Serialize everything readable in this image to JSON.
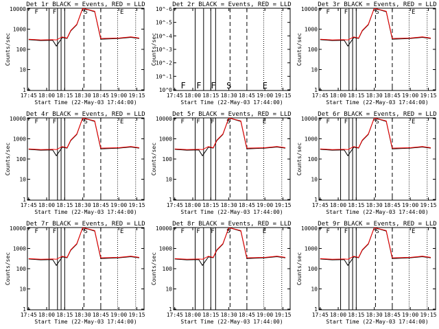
{
  "colors": {
    "background": "#ffffff",
    "axes": "#000000",
    "events": "#000000",
    "lld": "#ff0000"
  },
  "chart_data": [
    {
      "type": "line",
      "title": "Det 1r BLACK = Events, RED = LLD",
      "xlabel": "Start Time (22-May-03 17:44:00)",
      "ylabel": "Counts/sec",
      "yscale": "log",
      "x_ticks": [
        "17:45",
        "18:00",
        "18:15",
        "18:30",
        "18:45",
        "19:00",
        "19:15"
      ],
      "y_ticks": [
        "1",
        "10",
        "100",
        "1000",
        "10000"
      ],
      "ylim": [
        1,
        12000
      ],
      "grid": false,
      "markers": [
        "F",
        "F",
        "S",
        "E"
      ],
      "series": [
        {
          "name": "Events",
          "color": "#000000",
          "x": [
            "17:45",
            "17:55",
            "18:05",
            "18:08",
            "18:13",
            "18:17",
            "18:20",
            "18:25",
            "18:30",
            "18:40",
            "18:45",
            "19:00",
            "19:10",
            "19:17"
          ],
          "values": [
            330,
            300,
            310,
            160,
            420,
            380,
            900,
            1800,
            12000,
            8000,
            350,
            380,
            430,
            380
          ]
        },
        {
          "name": "LLD",
          "color": "#ff0000",
          "x": [
            "17:45",
            "17:55",
            "18:05",
            "18:08",
            "18:13",
            "18:17",
            "18:20",
            "18:25",
            "18:30",
            "18:40",
            "18:45",
            "19:00",
            "19:10",
            "19:17"
          ],
          "values": [
            350,
            320,
            330,
            320,
            450,
            400,
            950,
            1900,
            12000,
            8500,
            380,
            400,
            460,
            400
          ]
        }
      ]
    },
    {
      "type": "line",
      "title": "Det 2r BLACK = Events, RED = LLD",
      "xlabel": "Start Time (22-May-03 17:44:00)",
      "ylabel": "Counts/sec",
      "yscale": "log",
      "x_ticks": [
        "17:45",
        "18:00",
        "18:15",
        "18:30",
        "18:45",
        "19:00",
        "19:15"
      ],
      "y_ticks": [
        "10^0",
        "10^-1",
        "10^-2",
        "10^-3",
        "10^-4",
        "10^-5",
        "10^-6"
      ],
      "ylim": [
        1,
        1e-06
      ],
      "grid": false,
      "markers": [
        "F",
        "F",
        "F",
        "S",
        "E"
      ],
      "series": []
    },
    {
      "type": "line",
      "title": "Det 3r BLACK = Events, RED = LLD",
      "xlabel": "Start Time (22-May-03 17:44:00)",
      "ylabel": "Counts/sec",
      "yscale": "log",
      "x_ticks": [
        "17:45",
        "18:00",
        "18:15",
        "18:30",
        "18:45",
        "19:00",
        "19:15"
      ],
      "y_ticks": [
        "1",
        "10",
        "100",
        "1000",
        "10000"
      ],
      "ylim": [
        1,
        12000
      ],
      "grid": false,
      "markers": [
        "F",
        "F",
        "S",
        "E"
      ],
      "series": [
        {
          "name": "Events",
          "color": "#000000",
          "x": [
            "17:45",
            "17:55",
            "18:05",
            "18:08",
            "18:13",
            "18:17",
            "18:20",
            "18:25",
            "18:30",
            "18:40",
            "18:45",
            "19:00",
            "19:10",
            "19:17"
          ],
          "values": [
            330,
            300,
            310,
            160,
            420,
            380,
            900,
            1800,
            12000,
            8000,
            350,
            380,
            430,
            380
          ]
        },
        {
          "name": "LLD",
          "color": "#ff0000",
          "x": [
            "17:45",
            "17:55",
            "18:05",
            "18:08",
            "18:13",
            "18:17",
            "18:20",
            "18:25",
            "18:30",
            "18:40",
            "18:45",
            "19:00",
            "19:10",
            "19:17"
          ],
          "values": [
            350,
            320,
            330,
            320,
            450,
            400,
            950,
            1900,
            12000,
            8500,
            380,
            400,
            460,
            400
          ]
        }
      ]
    },
    {
      "type": "line",
      "title": "Det 4r BLACK = Events, RED = LLD",
      "xlabel": "Start Time (22-May-03 17:44:00)",
      "ylabel": "Counts/sec",
      "yscale": "log",
      "x_ticks": [
        "17:45",
        "18:00",
        "18:15",
        "18:30",
        "18:45",
        "19:00",
        "19:15"
      ],
      "y_ticks": [
        "1",
        "10",
        "100",
        "1000",
        "10000"
      ],
      "ylim": [
        1,
        12000
      ],
      "grid": false,
      "markers": [
        "F",
        "F",
        "S",
        "E"
      ],
      "series": [
        {
          "name": "Events",
          "color": "#000000",
          "x": [
            "17:45",
            "17:55",
            "18:05",
            "18:08",
            "18:13",
            "18:17",
            "18:20",
            "18:25",
            "18:30",
            "18:40",
            "18:45",
            "19:00",
            "19:10",
            "19:17"
          ],
          "values": [
            330,
            300,
            310,
            160,
            420,
            380,
            900,
            1800,
            12000,
            8000,
            350,
            380,
            430,
            380
          ]
        },
        {
          "name": "LLD",
          "color": "#ff0000",
          "x": [
            "17:45",
            "17:55",
            "18:05",
            "18:08",
            "18:13",
            "18:17",
            "18:20",
            "18:25",
            "18:30",
            "18:40",
            "18:45",
            "19:00",
            "19:10",
            "19:17"
          ],
          "values": [
            350,
            320,
            330,
            320,
            450,
            400,
            950,
            1900,
            12000,
            8500,
            380,
            400,
            460,
            400
          ]
        }
      ]
    },
    {
      "type": "line",
      "title": "Det 5r BLACK = Events, RED = LLD",
      "xlabel": "Start Time (22-May-03 17:44:00)",
      "ylabel": "Counts/sec",
      "yscale": "log",
      "x_ticks": [
        "17:45",
        "18:00",
        "18:15",
        "18:30",
        "18:45",
        "19:00",
        "19:15"
      ],
      "y_ticks": [
        "1",
        "10",
        "100",
        "1000",
        "10000"
      ],
      "ylim": [
        1,
        12000
      ],
      "grid": false,
      "markers": [
        "F",
        "F",
        "F",
        "S",
        "E"
      ],
      "series": [
        {
          "name": "Events",
          "color": "#000000",
          "x": [
            "17:45",
            "17:55",
            "18:05",
            "18:08",
            "18:13",
            "18:17",
            "18:20",
            "18:25",
            "18:30",
            "18:40",
            "18:45",
            "19:00",
            "19:10",
            "19:17"
          ],
          "values": [
            330,
            300,
            310,
            160,
            420,
            380,
            900,
            1800,
            12000,
            8000,
            350,
            380,
            430,
            380
          ]
        },
        {
          "name": "LLD",
          "color": "#ff0000",
          "x": [
            "17:45",
            "17:55",
            "18:05",
            "18:08",
            "18:13",
            "18:17",
            "18:20",
            "18:25",
            "18:30",
            "18:40",
            "18:45",
            "19:00",
            "19:10",
            "19:17"
          ],
          "values": [
            350,
            320,
            330,
            320,
            450,
            400,
            950,
            1900,
            12000,
            8500,
            380,
            400,
            460,
            400
          ]
        }
      ]
    },
    {
      "type": "line",
      "title": "Det 6r BLACK = Events, RED = LLD",
      "xlabel": "Start Time (22-May-03 17:44:00)",
      "ylabel": "Counts/sec",
      "yscale": "log",
      "x_ticks": [
        "17:45",
        "18:00",
        "18:15",
        "18:30",
        "18:45",
        "19:00",
        "19:15"
      ],
      "y_ticks": [
        "1",
        "10",
        "100",
        "1000",
        "10000"
      ],
      "ylim": [
        1,
        12000
      ],
      "grid": false,
      "markers": [
        "F",
        "F",
        "S",
        "E"
      ],
      "series": [
        {
          "name": "Events",
          "color": "#000000",
          "x": [
            "17:45",
            "17:55",
            "18:05",
            "18:08",
            "18:13",
            "18:17",
            "18:20",
            "18:25",
            "18:30",
            "18:40",
            "18:45",
            "19:00",
            "19:10",
            "19:17"
          ],
          "values": [
            330,
            300,
            310,
            160,
            420,
            380,
            900,
            1800,
            12000,
            8000,
            350,
            380,
            430,
            380
          ]
        },
        {
          "name": "LLD",
          "color": "#ff0000",
          "x": [
            "17:45",
            "17:55",
            "18:05",
            "18:08",
            "18:13",
            "18:17",
            "18:20",
            "18:25",
            "18:30",
            "18:40",
            "18:45",
            "19:00",
            "19:10",
            "19:17"
          ],
          "values": [
            350,
            320,
            330,
            320,
            450,
            400,
            950,
            1900,
            12000,
            8500,
            380,
            400,
            460,
            400
          ]
        }
      ]
    },
    {
      "type": "line",
      "title": "Det 7r BLACK = Events, RED = LLD",
      "xlabel": "Start Time (22-May-03 17:44:00)",
      "ylabel": "Counts/sec",
      "yscale": "log",
      "x_ticks": [
        "17:45",
        "18:00",
        "18:15",
        "18:30",
        "18:45",
        "19:00",
        "19:15"
      ],
      "y_ticks": [
        "1",
        "10",
        "100",
        "1000",
        "10000"
      ],
      "ylim": [
        1,
        12000
      ],
      "grid": false,
      "markers": [
        "F",
        "F",
        "S",
        "E"
      ],
      "series": [
        {
          "name": "Events",
          "color": "#000000",
          "x": [
            "17:45",
            "17:55",
            "18:05",
            "18:08",
            "18:13",
            "18:17",
            "18:20",
            "18:25",
            "18:30",
            "18:40",
            "18:45",
            "19:00",
            "19:10",
            "19:17"
          ],
          "values": [
            330,
            300,
            310,
            160,
            420,
            380,
            900,
            1800,
            12000,
            8000,
            350,
            380,
            430,
            380
          ]
        },
        {
          "name": "LLD",
          "color": "#ff0000",
          "x": [
            "17:45",
            "17:55",
            "18:05",
            "18:08",
            "18:13",
            "18:17",
            "18:20",
            "18:25",
            "18:30",
            "18:40",
            "18:45",
            "19:00",
            "19:10",
            "19:17"
          ],
          "values": [
            350,
            320,
            330,
            320,
            450,
            400,
            950,
            1900,
            12000,
            8500,
            380,
            400,
            460,
            400
          ]
        }
      ]
    },
    {
      "type": "line",
      "title": "Det 8r BLACK = Events, RED = LLD",
      "xlabel": "Start Time (22-May-03 17:44:00)",
      "ylabel": "Counts/sec",
      "yscale": "log",
      "x_ticks": [
        "17:45",
        "18:00",
        "18:15",
        "18:30",
        "18:45",
        "19:00",
        "19:15"
      ],
      "y_ticks": [
        "1",
        "10",
        "100",
        "1000",
        "10000"
      ],
      "ylim": [
        1,
        12000
      ],
      "grid": false,
      "markers": [
        "F",
        "F",
        "F",
        "S",
        "E"
      ],
      "series": [
        {
          "name": "Events",
          "color": "#000000",
          "x": [
            "17:45",
            "17:55",
            "18:05",
            "18:08",
            "18:13",
            "18:17",
            "18:20",
            "18:25",
            "18:30",
            "18:40",
            "18:45",
            "19:00",
            "19:10",
            "19:17"
          ],
          "values": [
            330,
            300,
            310,
            160,
            420,
            380,
            900,
            1800,
            12000,
            8000,
            350,
            380,
            430,
            380
          ]
        },
        {
          "name": "LLD",
          "color": "#ff0000",
          "x": [
            "17:45",
            "17:55",
            "18:05",
            "18:08",
            "18:13",
            "18:17",
            "18:20",
            "18:25",
            "18:30",
            "18:40",
            "18:45",
            "19:00",
            "19:10",
            "19:17"
          ],
          "values": [
            350,
            320,
            330,
            320,
            450,
            400,
            950,
            1900,
            12000,
            8500,
            380,
            400,
            460,
            400
          ]
        }
      ]
    },
    {
      "type": "line",
      "title": "Det 9r BLACK = Events, RED = LLD",
      "xlabel": "Start Time (22-May-03 17:44:00)",
      "ylabel": "Counts/sec",
      "yscale": "log",
      "x_ticks": [
        "17:45",
        "18:00",
        "18:15",
        "18:30",
        "18:45",
        "19:00",
        "19:15"
      ],
      "y_ticks": [
        "1",
        "10",
        "100",
        "1000",
        "10000"
      ],
      "ylim": [
        1,
        12000
      ],
      "grid": false,
      "markers": [
        "F",
        "F",
        "S",
        "E"
      ],
      "series": [
        {
          "name": "Events",
          "color": "#000000",
          "x": [
            "17:45",
            "17:55",
            "18:05",
            "18:08",
            "18:13",
            "18:17",
            "18:20",
            "18:25",
            "18:30",
            "18:40",
            "18:45",
            "19:00",
            "19:10",
            "19:17"
          ],
          "values": [
            330,
            300,
            310,
            160,
            420,
            380,
            900,
            1800,
            12000,
            8000,
            350,
            380,
            430,
            380
          ]
        },
        {
          "name": "LLD",
          "color": "#ff0000",
          "x": [
            "17:45",
            "17:55",
            "18:05",
            "18:08",
            "18:13",
            "18:17",
            "18:20",
            "18:25",
            "18:30",
            "18:40",
            "18:45",
            "19:00",
            "19:10",
            "19:17"
          ],
          "values": [
            350,
            320,
            330,
            320,
            450,
            400,
            950,
            1900,
            12000,
            8500,
            380,
            400,
            460,
            400
          ]
        }
      ]
    }
  ]
}
